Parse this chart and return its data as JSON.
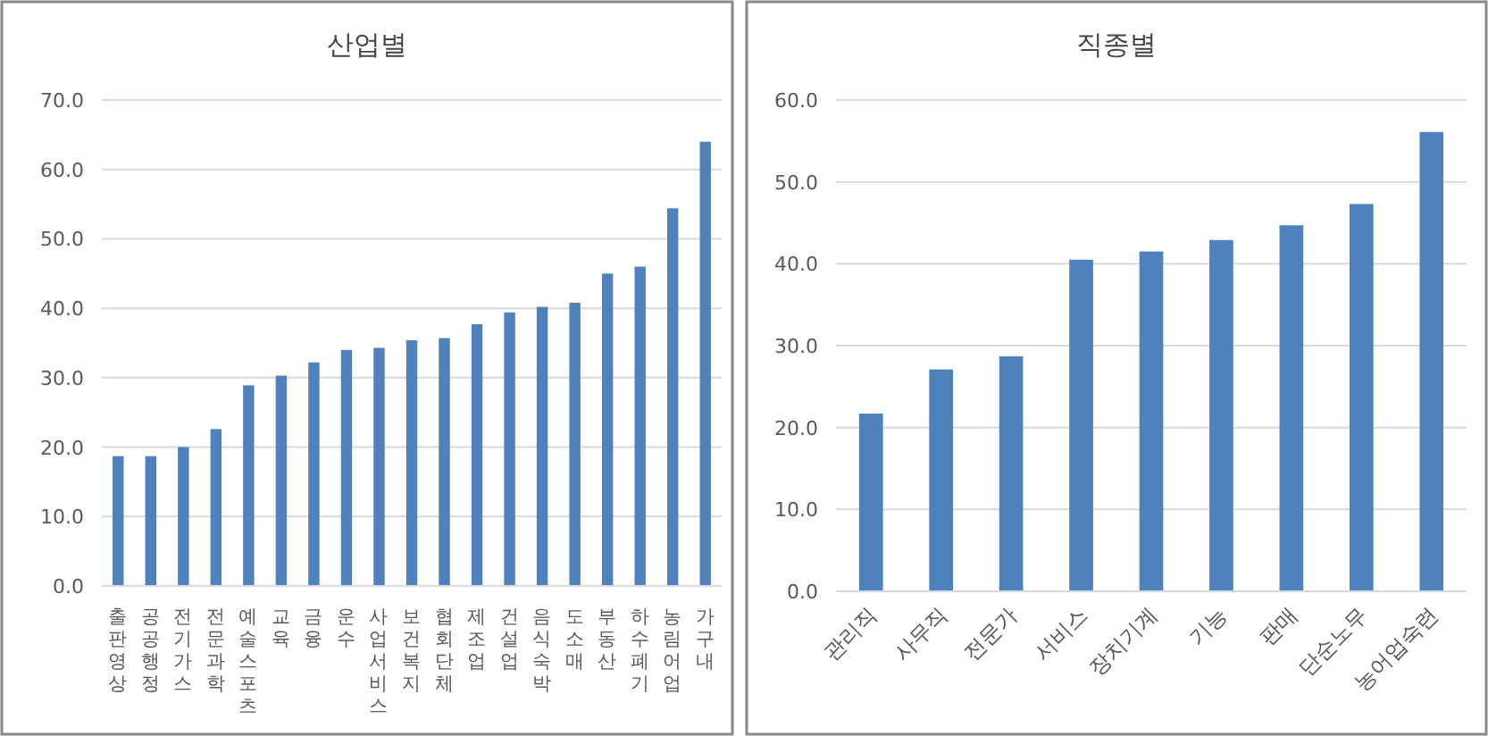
{
  "chart_data": [
    {
      "type": "bar",
      "title": "산업별",
      "categories": [
        "출판영상",
        "공공행정",
        "전기가스",
        "전문과학",
        "예술스포츠",
        "교육",
        "금융",
        "운수",
        "사업서비스",
        "보건복지",
        "협회단체",
        "제조업",
        "건설업",
        "음식숙박",
        "도소매",
        "부동산",
        "하수폐기",
        "농림어업",
        "가구내"
      ],
      "values": [
        18.7,
        18.7,
        20.0,
        22.6,
        28.9,
        30.3,
        32.2,
        34.0,
        34.3,
        35.4,
        35.7,
        37.7,
        39.4,
        40.2,
        40.8,
        45.0,
        46.0,
        54.4,
        64.0
      ],
      "color": "#4f81bd",
      "ylim": [
        0,
        70
      ],
      "yticks": [
        {
          "value": 0,
          "label": "0.0"
        },
        {
          "value": 10,
          "label": "10.0"
        },
        {
          "value": 20,
          "label": "20.0"
        },
        {
          "value": 30,
          "label": "30.0"
        },
        {
          "value": 40,
          "label": "40.0"
        },
        {
          "value": 50,
          "label": "50.0"
        },
        {
          "value": 60,
          "label": "60.0"
        },
        {
          "value": 70,
          "label": "70.0"
        }
      ],
      "grid": "y"
    },
    {
      "type": "bar",
      "title": "직종별",
      "categories": [
        "관리직",
        "사무직",
        "전문가",
        "서비스",
        "장치기계",
        "기능",
        "판매",
        "단순노무",
        "농어업숙련"
      ],
      "values": [
        21.7,
        27.1,
        28.7,
        40.5,
        41.5,
        42.9,
        44.7,
        47.3,
        56.1
      ],
      "color": "#4f81bd",
      "ylim": [
        0,
        60
      ],
      "yticks": [
        {
          "value": 0,
          "label": "0.0"
        },
        {
          "value": 10,
          "label": "10.0"
        },
        {
          "value": 20,
          "label": "20.0"
        },
        {
          "value": 30,
          "label": "30.0"
        },
        {
          "value": 40,
          "label": "40.0"
        },
        {
          "value": 50,
          "label": "50.0"
        },
        {
          "value": 60,
          "label": "60.0"
        }
      ],
      "grid": "y"
    }
  ]
}
